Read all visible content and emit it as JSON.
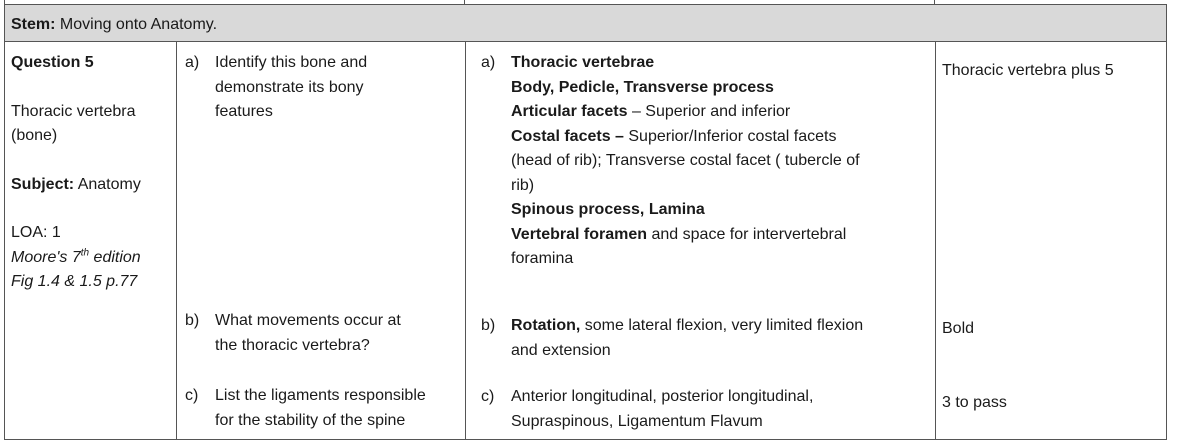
{
  "stem": {
    "label": "Stem:",
    "text": "Moving onto Anatomy."
  },
  "left_col": {
    "question": "Question 5",
    "topic_line1": "Thoracic vertebra",
    "topic_line2": "(bone)",
    "subject_label": "Subject:",
    "subject_value": "Anatomy",
    "loa": "LOA: 1",
    "ref_pre": "Moore's 7",
    "ref_sup": "th",
    "ref_post": " edition",
    "ref_line2": "Fig 1.4 & 1.5 p.77"
  },
  "questions": {
    "a": {
      "label": "a)",
      "lines": [
        "Identify this bone and",
        "demonstrate its bony",
        "features"
      ]
    },
    "b": {
      "label": "b)",
      "lines": [
        "What movements occur at",
        "the thoracic vertebra?"
      ]
    },
    "c": {
      "label": "c)",
      "lines": [
        "List the ligaments responsible",
        "for the stability of the spine"
      ]
    }
  },
  "answers": {
    "a": {
      "label": "a)",
      "line1": "Thoracic vertebrae",
      "line2": "Body, Pedicle, Transverse process",
      "line3_bold": "Articular facets",
      "line3_rest": " – Superior and inferior",
      "line4_bold": "Costal facets –",
      "line4_rest": " Superior/Inferior costal facets",
      "line5": "(head of rib); Transverse costal facet ( tubercle of",
      "line6": "rib)",
      "line7": "Spinous process, Lamina",
      "line8_bold": "Vertebral foramen",
      "line8_rest": " and space for intervertebral",
      "line9": "foramina"
    },
    "b": {
      "label": "b)",
      "bold": "Rotation,",
      "rest": " some lateral flexion, very limited flexion",
      "line2": "and extension"
    },
    "c": {
      "label": "c)",
      "line1": "Anterior longitudinal, posterior longitudinal,",
      "line2": "Supraspinous, Ligamentum Flavum"
    }
  },
  "marks": {
    "a": "Thoracic vertebra plus 5",
    "b": "Bold",
    "c": "3 to pass"
  }
}
